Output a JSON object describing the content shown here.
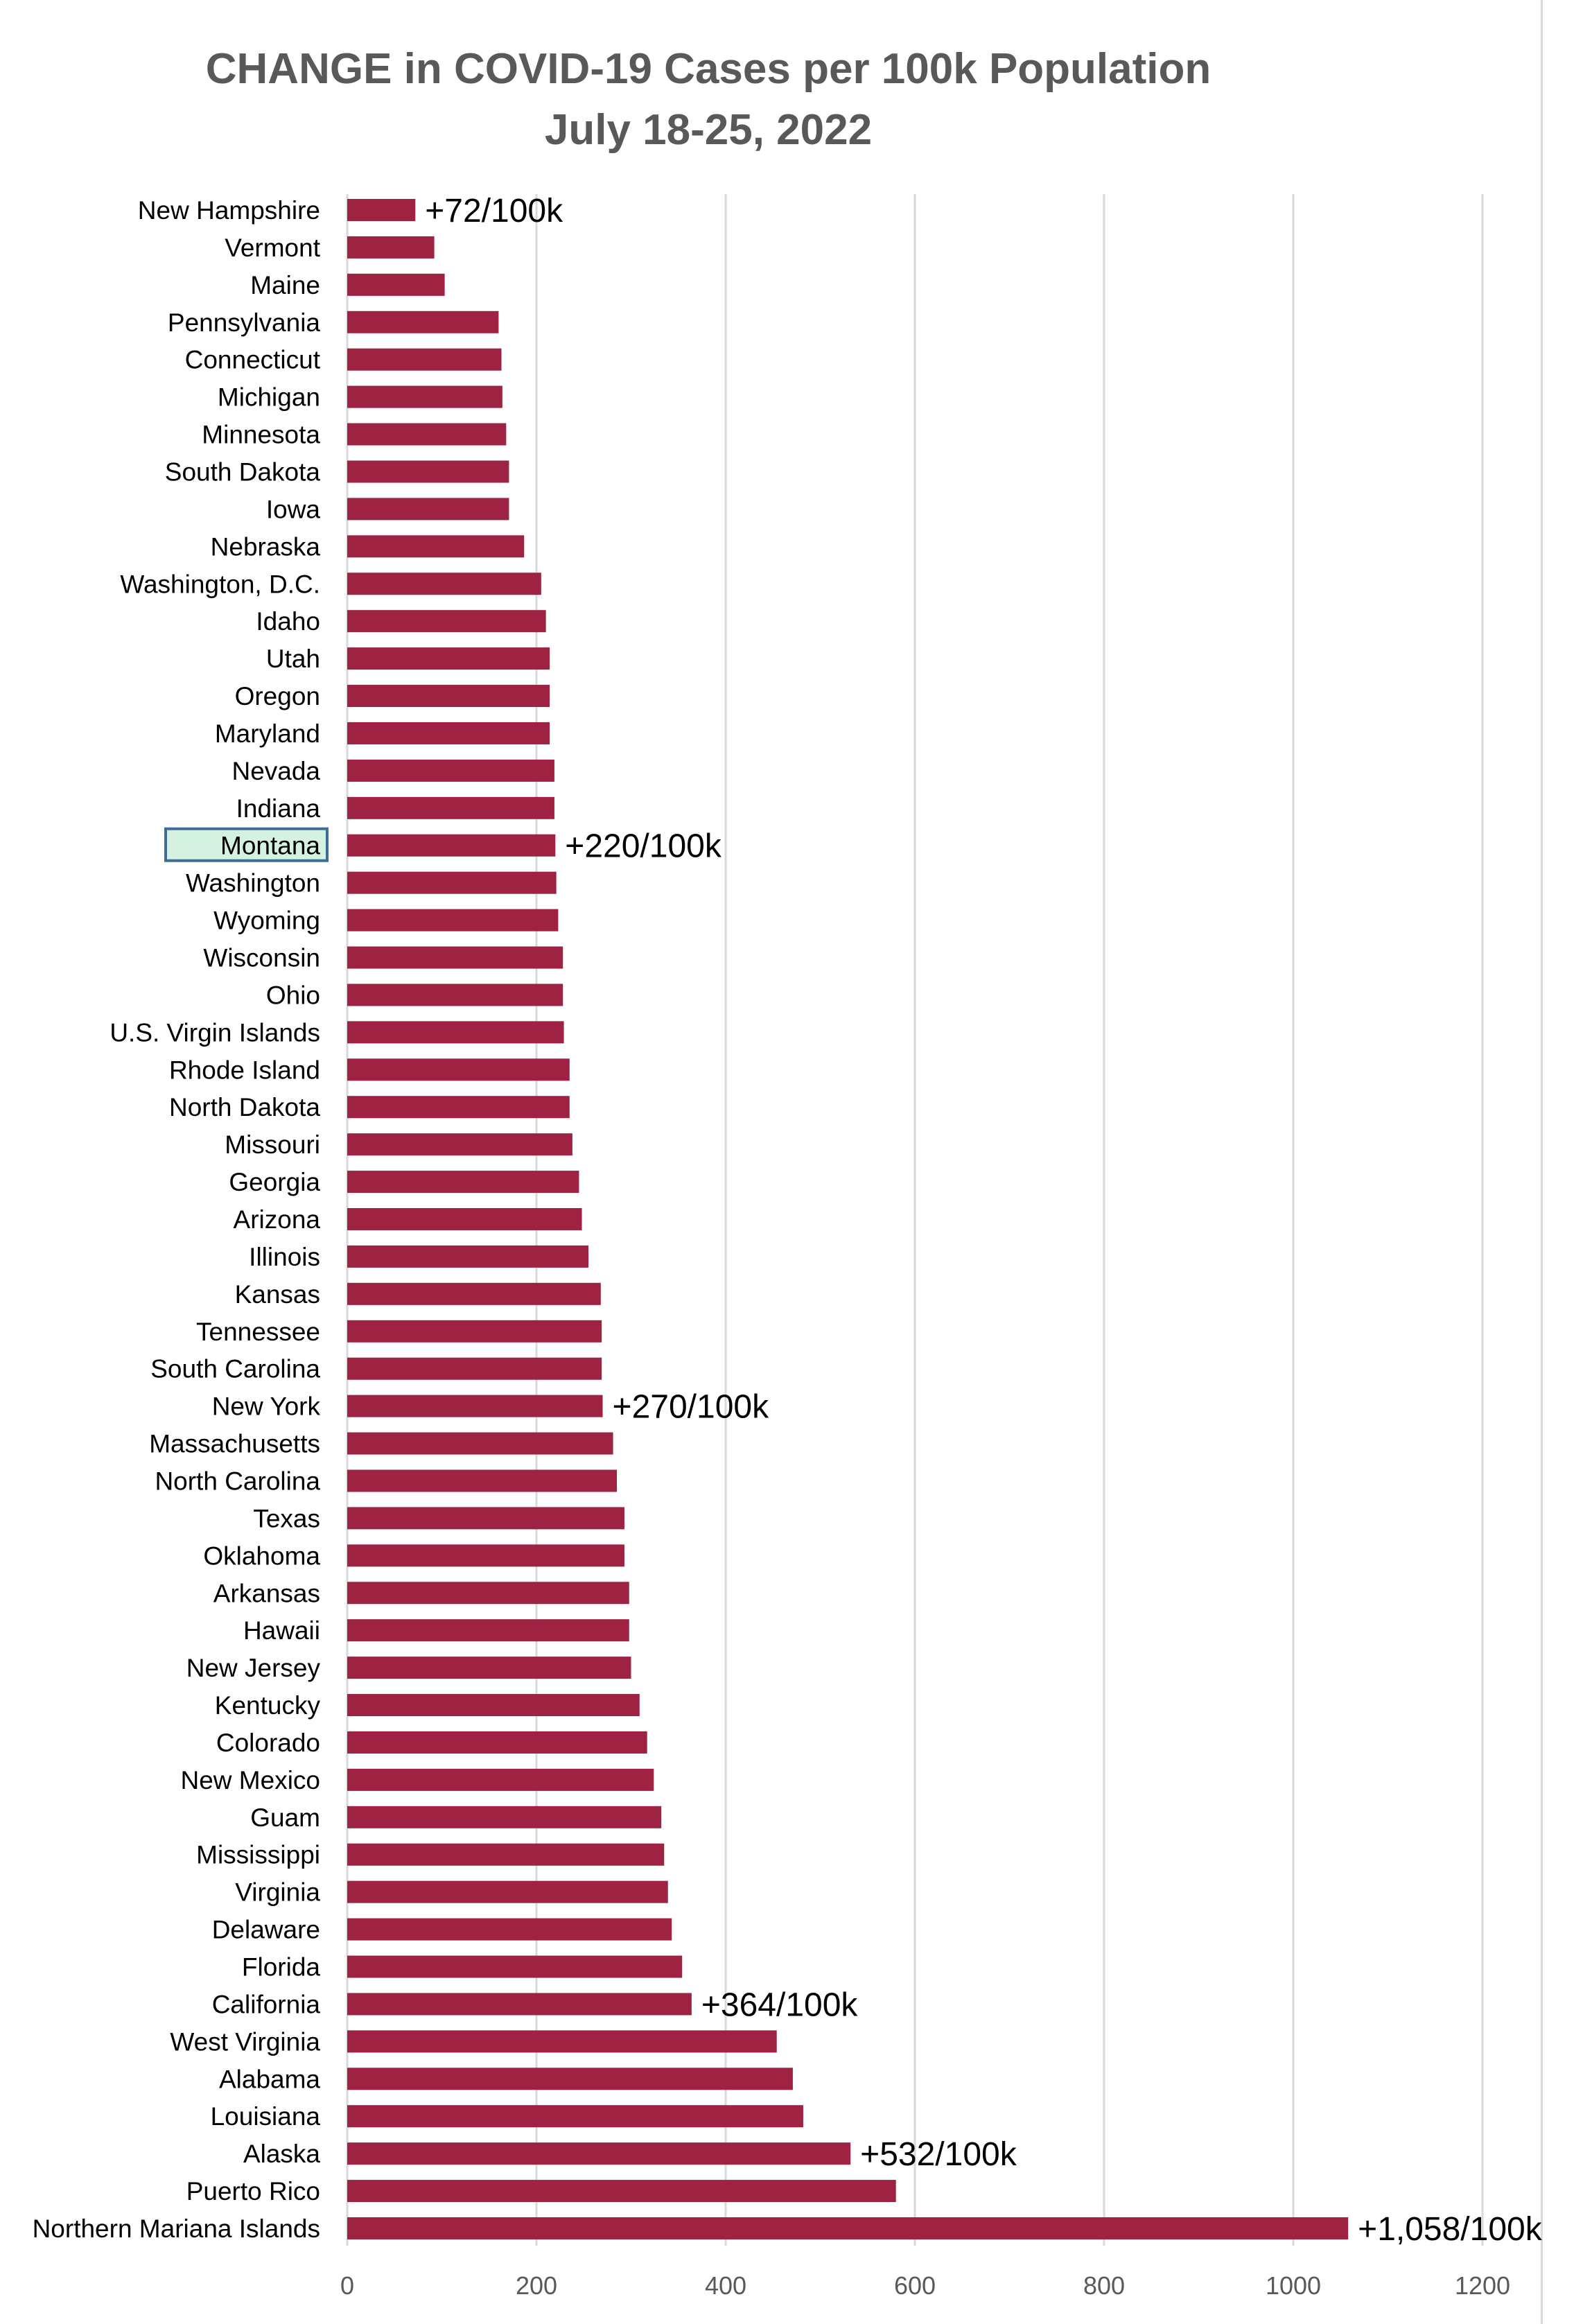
{
  "chart_data": {
    "type": "bar",
    "orientation": "horizontal",
    "title": "CHANGE in COVID-19 Cases per 100k Population",
    "subtitle": "July 18-25, 2022",
    "xlabel": "",
    "ylabel": "",
    "xlim": [
      0,
      1200
    ],
    "xticks": [
      0,
      200,
      400,
      600,
      800,
      1000,
      1200
    ],
    "grid": "vertical",
    "bar_color": "#9e2342",
    "highlight_category": "Montana",
    "highlight_color": "#d5f2e0",
    "highlight_border": "#3d6e96",
    "categories": [
      "New Hampshire",
      "Vermont",
      "Maine",
      "Pennsylvania",
      "Connecticut",
      "Michigan",
      "Minnesota",
      "South Dakota",
      "Iowa",
      "Nebraska",
      "Washington, D.C.",
      "Idaho",
      "Utah",
      "Oregon",
      "Maryland",
      "Nevada",
      "Indiana",
      "Montana",
      "Washington",
      "Wyoming",
      "Wisconsin",
      "Ohio",
      "U.S. Virgin Islands",
      "Rhode Island",
      "North Dakota",
      "Missouri",
      "Georgia",
      "Arizona",
      "Illinois",
      "Kansas",
      "Tennessee",
      "South Carolina",
      "New York",
      "Massachusetts",
      "North Carolina",
      "Texas",
      "Oklahoma",
      "Arkansas",
      "Hawaii",
      "New Jersey",
      "Kentucky",
      "Colorado",
      "New Mexico",
      "Guam",
      "Mississippi",
      "Virginia",
      "Delaware",
      "Florida",
      "California",
      "West Virginia",
      "Alabama",
      "Louisiana",
      "Alaska",
      "Puerto Rico",
      "Northern Mariana Islands"
    ],
    "values": [
      72,
      92,
      103,
      160,
      163,
      164,
      168,
      171,
      171,
      187,
      205,
      210,
      214,
      214,
      214,
      219,
      219,
      220,
      221,
      223,
      228,
      228,
      229,
      235,
      235,
      238,
      245,
      248,
      255,
      268,
      269,
      269,
      270,
      281,
      285,
      293,
      293,
      298,
      298,
      300,
      309,
      317,
      324,
      332,
      335,
      339,
      343,
      354,
      364,
      454,
      471,
      482,
      532,
      580,
      1058
    ],
    "annotations": [
      {
        "category": "New Hampshire",
        "text": "+72/100k"
      },
      {
        "category": "Montana",
        "text": "+220/100k"
      },
      {
        "category": "New York",
        "text": "+270/100k"
      },
      {
        "category": "California",
        "text": "+364/100k"
      },
      {
        "category": "Alaska",
        "text": "+532/100k"
      },
      {
        "category": "Northern Mariana Islands",
        "text": "+1,058/100k"
      }
    ]
  }
}
